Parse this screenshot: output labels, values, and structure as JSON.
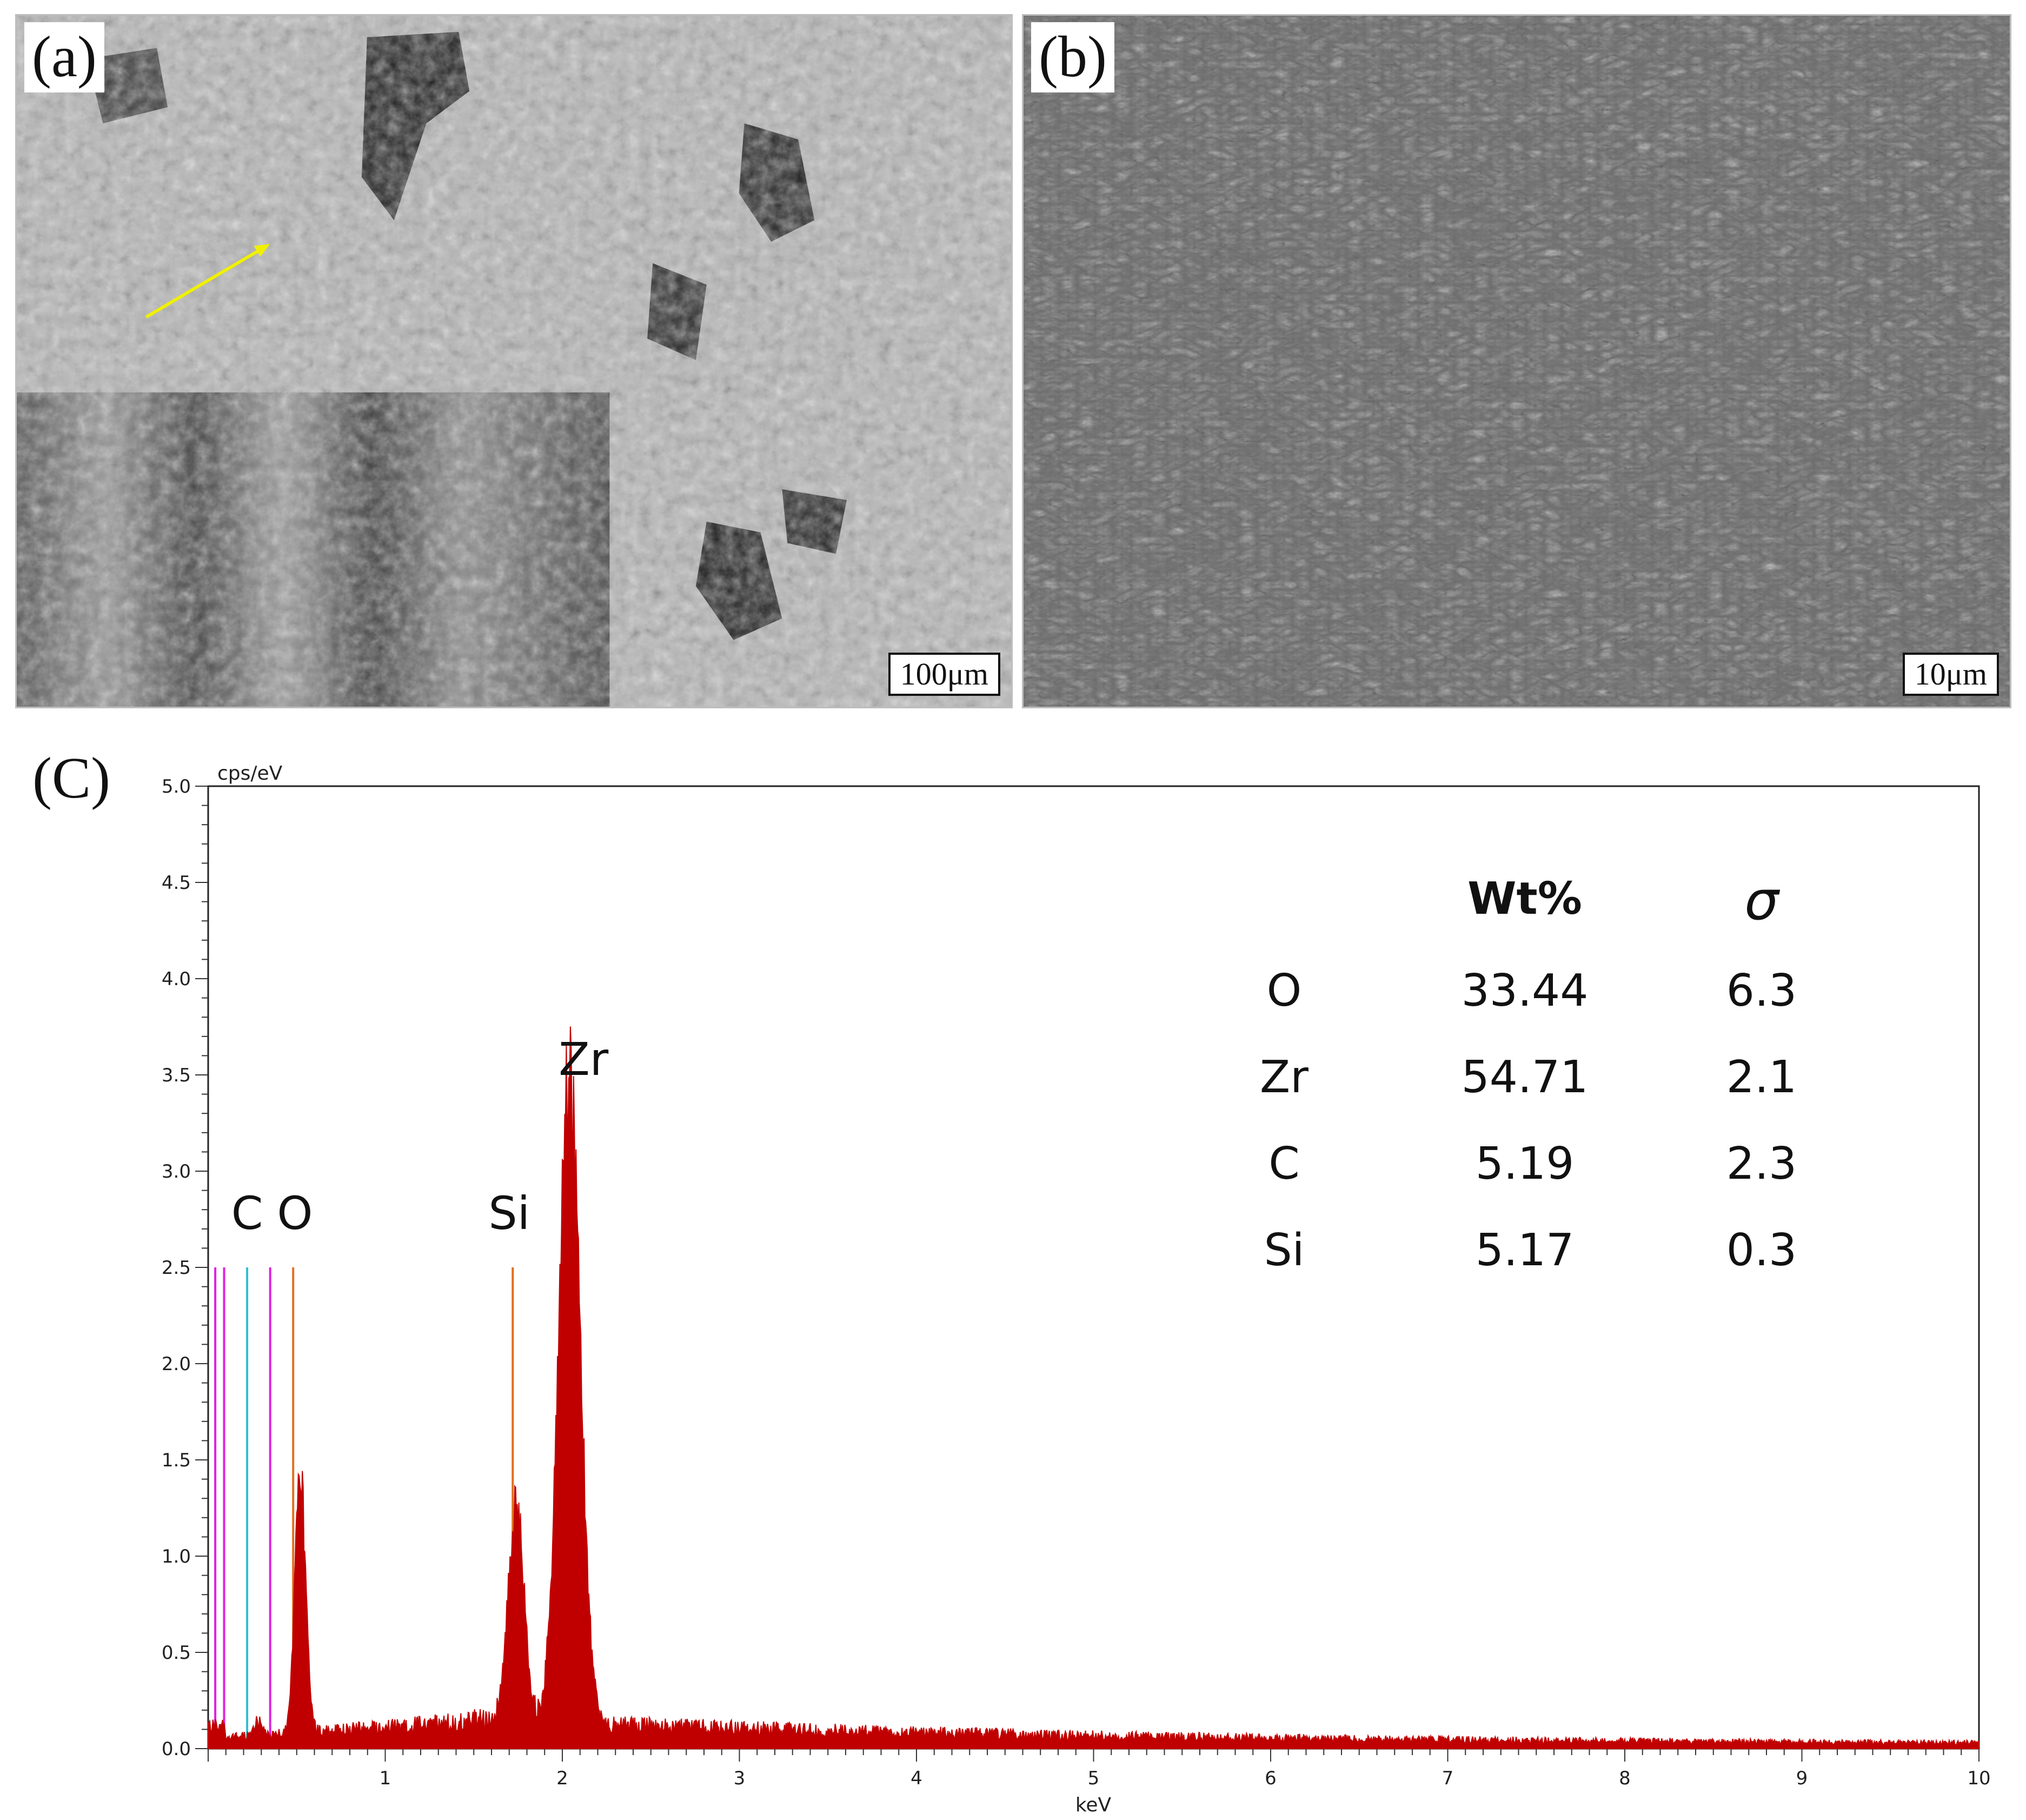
{
  "panels": [
    {
      "label": "(a)",
      "scale_bar": "100μm"
    },
    {
      "label": "(b)",
      "scale_bar": "10μm"
    }
  ],
  "chart_label": "(C)",
  "colors": {
    "spectrum": "#c00000",
    "marker_orange": "#e07020",
    "marker_magenta": "#e020e0",
    "marker_cyan": "#30c0d0",
    "arrow": "#f0f000"
  },
  "chart_data": {
    "type": "area",
    "ylabel": "cps/eV",
    "xlabel": "keV",
    "xlim": [
      0,
      10
    ],
    "ylim": [
      0,
      5.0
    ],
    "x_ticks": [
      "1",
      "2",
      "3",
      "4",
      "5",
      "6",
      "7",
      "8",
      "9",
      "10"
    ],
    "y_ticks": [
      "0.0",
      "0.5",
      "1.0",
      "1.5",
      "2.0",
      "2.5",
      "3.0",
      "3.5",
      "4.0",
      "4.5",
      "5.0"
    ],
    "peaks": [
      {
        "element": "C",
        "energy": 0.28,
        "height": 0.08
      },
      {
        "element": "O",
        "energy": 0.52,
        "height": 1.35
      },
      {
        "element": "Si",
        "energy": 1.74,
        "height": 1.1
      },
      {
        "element": "Zr",
        "energy": 2.04,
        "height": 3.4
      }
    ],
    "peak_labels": [
      {
        "text": "C",
        "x": 0.22,
        "y": 2.7
      },
      {
        "text": "O",
        "x": 0.49,
        "y": 2.7
      },
      {
        "text": "Si",
        "x": 1.7,
        "y": 2.7
      },
      {
        "text": "Zr",
        "x": 2.12,
        "y": 3.5
      }
    ],
    "marker_lines": [
      {
        "energy": 0.04,
        "color": "#e020e0"
      },
      {
        "energy": 0.09,
        "color": "#e020e0"
      },
      {
        "energy": 0.22,
        "color": "#30c0d0"
      },
      {
        "energy": 0.35,
        "color": "#e020e0"
      },
      {
        "energy": 0.48,
        "color": "#e07020"
      },
      {
        "energy": 1.72,
        "color": "#e07020"
      }
    ],
    "marker_height": 2.5,
    "composition_table": {
      "headers": [
        "",
        "Wt%",
        "σ"
      ],
      "rows": [
        [
          "O",
          "33.44",
          "6.3"
        ],
        [
          "Zr",
          "54.71",
          "2.1"
        ],
        [
          "C",
          "5.19",
          "2.3"
        ],
        [
          "Si",
          "5.17",
          "0.3"
        ]
      ]
    }
  }
}
